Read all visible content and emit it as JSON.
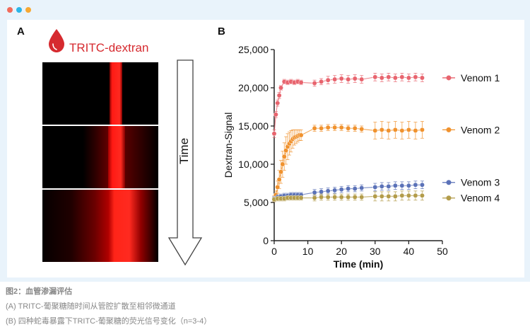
{
  "window": {
    "dot_colors": [
      "#f26b5b",
      "#2bb5e8",
      "#f7a832"
    ]
  },
  "panel_a": {
    "letter": "A",
    "label": "TRITC-dextran",
    "time_label": "Time",
    "drop_icon": "blood-drop-icon",
    "arrow_icon": "down-arrow-icon",
    "color": "#d62a2f"
  },
  "panel_b": {
    "letter": "B"
  },
  "chart_data": {
    "type": "line",
    "title": "",
    "xlabel": "Time (min)",
    "ylabel": "Dextran-Signal",
    "xlim": [
      0,
      50
    ],
    "ylim": [
      0,
      25000
    ],
    "xticks": [
      "0",
      "10",
      "20",
      "30",
      "40",
      "50"
    ],
    "yticks": [
      "0",
      "5,000",
      "10,000",
      "15,000",
      "20,000",
      "25,000"
    ],
    "grid": false,
    "legend_placement": "right",
    "series": [
      {
        "name": "Venom 1",
        "color": "#e8646e",
        "x": [
          0,
          0.5,
          1,
          1.5,
          2,
          3,
          4,
          5,
          6,
          7,
          8,
          12,
          14,
          16,
          18,
          20,
          22,
          24,
          26,
          30,
          32,
          34,
          36,
          38,
          40,
          42,
          44
        ],
        "y": [
          14000,
          16500,
          18000,
          19000,
          20000,
          20800,
          20700,
          20800,
          20700,
          20800,
          20700,
          20600,
          20800,
          21000,
          21100,
          21200,
          21100,
          21200,
          21100,
          21400,
          21300,
          21400,
          21300,
          21400,
          21300,
          21400,
          21300
        ],
        "err": [
          500,
          400,
          400,
          400,
          300,
          300,
          300,
          300,
          300,
          300,
          300,
          400,
          400,
          500,
          500,
          500,
          500,
          500,
          500,
          500,
          500,
          500,
          500,
          500,
          500,
          500,
          500
        ]
      },
      {
        "name": "Venom 2",
        "color": "#f0922e",
        "x": [
          0,
          0.5,
          1,
          1.5,
          2,
          2.5,
          3,
          3.5,
          4,
          4.5,
          5,
          5.5,
          6,
          6.5,
          7,
          7.5,
          8,
          12,
          14,
          16,
          18,
          20,
          22,
          24,
          26,
          30,
          32,
          34,
          36,
          38,
          40,
          42,
          44
        ],
        "y": [
          5500,
          6000,
          7000,
          8000,
          9000,
          10000,
          11000,
          11800,
          12300,
          12700,
          13000,
          13300,
          13500,
          13600,
          13700,
          13800,
          13800,
          14700,
          14700,
          14800,
          14800,
          14800,
          14700,
          14700,
          14600,
          14400,
          14500,
          14400,
          14500,
          14400,
          14500,
          14400,
          14500
        ],
        "err": [
          400,
          500,
          800,
          1200,
          1500,
          1700,
          1800,
          1800,
          1700,
          1500,
          1400,
          1200,
          1000,
          900,
          800,
          700,
          700,
          400,
          400,
          400,
          400,
          400,
          400,
          400,
          400,
          1100,
          1100,
          1100,
          1100,
          1100,
          1100,
          1100,
          1100
        ]
      },
      {
        "name": "Venom 3",
        "color": "#5b72b8",
        "x": [
          0,
          1,
          2,
          3,
          4,
          5,
          6,
          7,
          8,
          12,
          14,
          16,
          18,
          20,
          22,
          24,
          26,
          30,
          32,
          34,
          36,
          38,
          40,
          42,
          44
        ],
        "y": [
          5500,
          5700,
          5800,
          5900,
          5900,
          6000,
          6000,
          6000,
          6000,
          6300,
          6400,
          6500,
          6600,
          6700,
          6800,
          6800,
          6900,
          7000,
          7100,
          7100,
          7200,
          7200,
          7200,
          7300,
          7300
        ],
        "err": [
          300,
          300,
          300,
          300,
          300,
          300,
          300,
          300,
          300,
          400,
          400,
          400,
          400,
          400,
          400,
          400,
          400,
          500,
          500,
          500,
          500,
          500,
          500,
          500,
          500
        ]
      },
      {
        "name": "Venom 4",
        "color": "#b39c4a",
        "x": [
          0,
          1,
          2,
          3,
          4,
          5,
          6,
          7,
          8,
          12,
          14,
          16,
          18,
          20,
          22,
          24,
          26,
          30,
          32,
          34,
          36,
          38,
          40,
          42,
          44
        ],
        "y": [
          5400,
          5500,
          5500,
          5500,
          5600,
          5600,
          5600,
          5600,
          5600,
          5600,
          5700,
          5700,
          5700,
          5700,
          5700,
          5700,
          5700,
          5800,
          5800,
          5800,
          5800,
          5900,
          5900,
          5900,
          5900
        ],
        "err": [
          300,
          300,
          300,
          300,
          300,
          300,
          300,
          300,
          300,
          400,
          400,
          400,
          400,
          400,
          400,
          400,
          400,
          600,
          600,
          600,
          600,
          600,
          600,
          600,
          600
        ]
      }
    ]
  },
  "caption": {
    "title": "图2：血管渗漏评估",
    "line_a": "(A) TRITC-葡聚糖随时间从管腔扩散至相邻微通道",
    "line_b": "(B) 四种蛇毒暴露下TRITC-葡聚糖的荧光信号变化（n=3-4）"
  }
}
